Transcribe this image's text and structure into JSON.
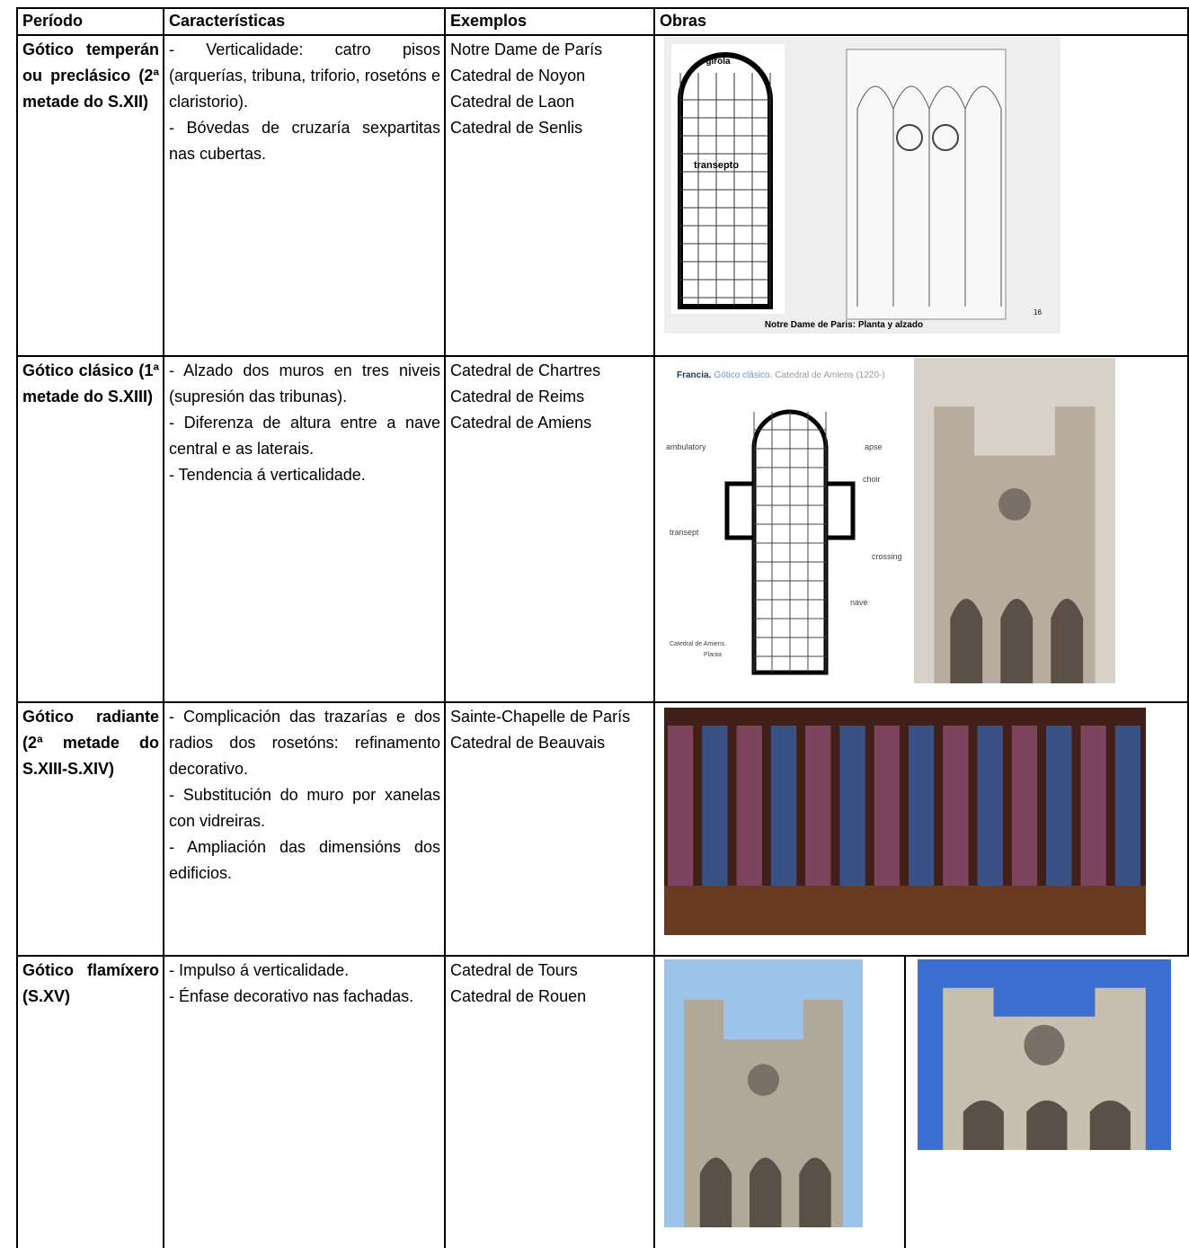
{
  "table": {
    "header": [
      "Período",
      "Características",
      "Exemplos",
      "Obras"
    ],
    "rows": [
      {
        "period": "Gótico temperán ou preclásico (2ª metade do S.XII)",
        "features": [
          "- Verticalidade: catro pisos (arquerías, tribuna, triforio, rosetóns e claristorio).",
          "- Bóvedas de cruzaría sexpartitas nas cubertas."
        ],
        "examples": [
          "Notre Dame de París",
          "Catedral de Noyon",
          "Catedral de Laon",
          "Catedral de Senlis"
        ],
        "image_text": [
          "girola",
          "transepto",
          "Notre Dame de Paris: Planta y alzado",
          "16"
        ]
      },
      {
        "period": "Gótico clásico (1ª metade do S.XIII)",
        "features": [
          "- Alzado dos muros en tres niveis (supresión das tribunas).",
          "- Diferenza de altura entre a nave central e as laterais.",
          "- Tendencia á verticalidade."
        ],
        "examples": [
          "Catedral de Chartres",
          "Catedral de Reims",
          "Catedral de Amiens"
        ],
        "image_text": [
          "Francia.",
          "Gótico clásico.",
          "Catedral de Amiens (1220-)",
          "ambulatory",
          "apse",
          "choir",
          "transept",
          "crossing",
          "nave",
          "Catedral de Amiens.",
          "Planta"
        ]
      },
      {
        "period": "Gótico radiante (2ª metade do S.XIII-S.XIV)",
        "features": [
          "- Complicación das trazarías e dos radios dos rosetóns: refinamento decorativo.",
          "- Substitución do muro por xanelas con vidreiras.",
          "- Ampliación das dimensións dos edificios."
        ],
        "examples": [
          "Sainte-Chapelle de París",
          "Catedral de Beauvais"
        ]
      },
      {
        "period": "Gótico flamíxero (S.XV)",
        "features": [
          "- Impulso á verticalidade.",
          "- Énfase decorativo nas fachadas."
        ],
        "examples": [
          "Catedral de Tours",
          "Catedral de Rouen"
        ]
      }
    ]
  }
}
